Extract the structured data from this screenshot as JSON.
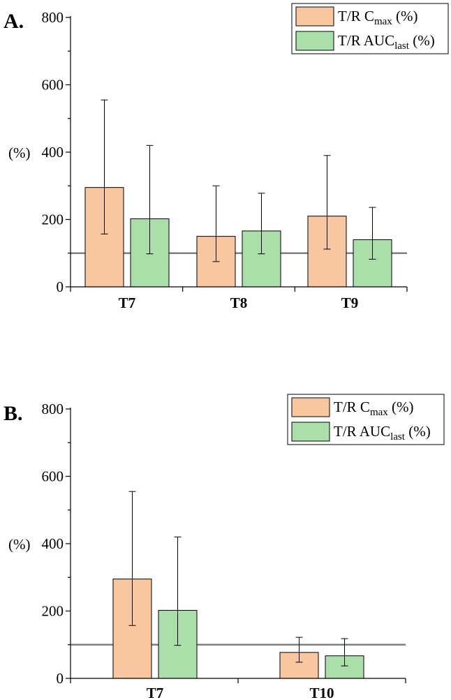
{
  "colors": {
    "series1": "#f9c79f",
    "series2": "#aadfaa",
    "reference_line": "#7f7f7f",
    "axis": "#000000"
  },
  "chart_data": [
    {
      "type": "bar",
      "panel_label": "A.",
      "ylabel": "(%)",
      "ylim": [
        0,
        800
      ],
      "yticks": [
        "0",
        "200",
        "400",
        "600",
        "800"
      ],
      "categories": [
        "T7",
        "T8",
        "T9"
      ],
      "reference_line": 100,
      "legend_position": "top-right",
      "series": [
        {
          "name": "T/R Cmax (%)",
          "legend_main": "T/R C",
          "legend_sub": "max",
          "legend_tail": " (%)",
          "values": [
            295,
            150,
            210
          ],
          "error_low": [
            157,
            75,
            112
          ],
          "error_high": [
            555,
            300,
            390
          ]
        },
        {
          "name": "T/R AUClast (%)",
          "legend_main": "T/R AUC",
          "legend_sub": "last",
          "legend_tail": " (%)",
          "values": [
            202,
            166,
            140
          ],
          "error_low": [
            98,
            98,
            82
          ],
          "error_high": [
            420,
            278,
            236
          ]
        }
      ]
    },
    {
      "type": "bar",
      "panel_label": "B.",
      "ylabel": "(%)",
      "ylim": [
        0,
        800
      ],
      "yticks": [
        "0",
        "200",
        "400",
        "600",
        "800"
      ],
      "categories": [
        "T7",
        "T10"
      ],
      "reference_line": 100,
      "legend_position": "top-right",
      "series": [
        {
          "name": "T/R Cmax (%)",
          "legend_main": "T/R C",
          "legend_sub": "max",
          "legend_tail": " (%)",
          "values": [
            295,
            77
          ],
          "error_low": [
            157,
            48
          ],
          "error_high": [
            555,
            122
          ]
        },
        {
          "name": "T/R AUClast (%)",
          "legend_main": "T/R AUC",
          "legend_sub": "last",
          "legend_tail": " (%)",
          "values": [
            202,
            67
          ],
          "error_low": [
            98,
            37
          ],
          "error_high": [
            420,
            118
          ]
        }
      ]
    }
  ]
}
